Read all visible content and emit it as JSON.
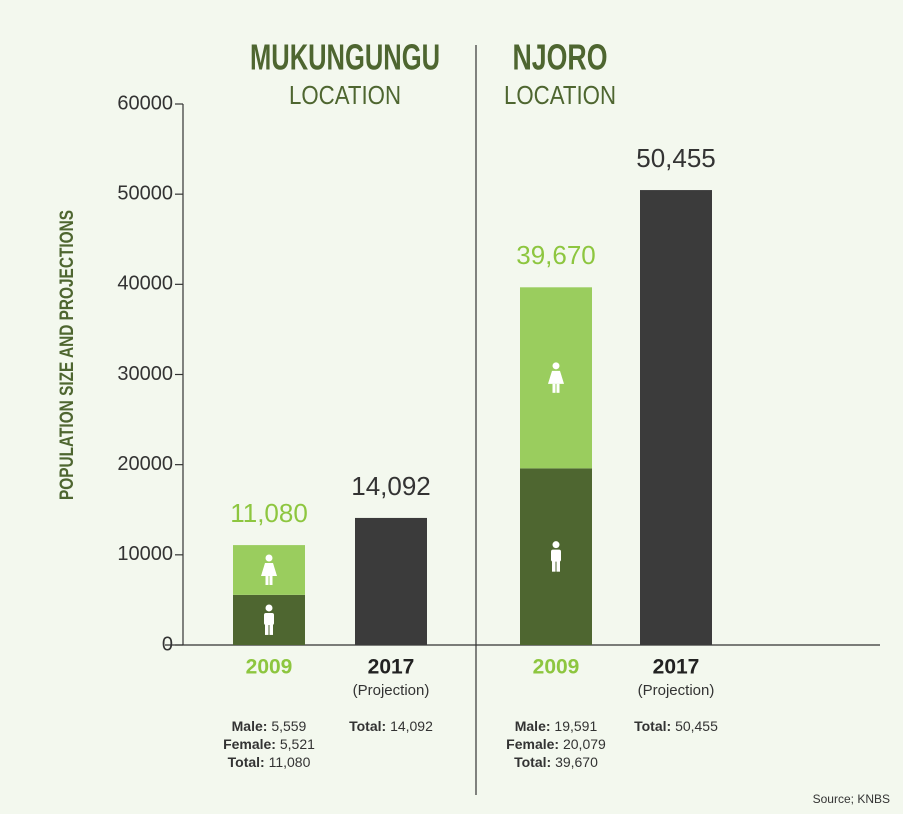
{
  "chart_data": {
    "type": "stacked-bar",
    "ylabel": "POPULATION SIZE AND PROJECTIONS",
    "ylim": [
      0,
      60000
    ],
    "yticks": [
      0,
      10000,
      20000,
      30000,
      40000,
      50000,
      60000
    ],
    "source": "Source; KNBS",
    "groups": [
      {
        "title": "MUKUNGUNGU",
        "subtitle": "LOCATION",
        "bars": [
          {
            "category": "2009",
            "category_color": "#8dc63f",
            "total": 11080,
            "total_label": "11,080",
            "total_name": "Total:",
            "label_color": "#8dc63f",
            "segments": [
              {
                "name": "Male:",
                "value": 5559,
                "value_label": "5,559",
                "color": "#4e6630"
              },
              {
                "name": "Female:",
                "value": 5521,
                "value_label": "5,521",
                "color": "#9acd5e"
              }
            ]
          },
          {
            "category": "2017",
            "category_color": "#222222",
            "note": "(Projection)",
            "label_color": "#333333",
            "segments": [
              {
                "name": "Total:",
                "value": 14092,
                "value_label": "14,092",
                "color": "#3b3b3b"
              }
            ]
          }
        ]
      },
      {
        "title": "NJORO",
        "subtitle": "LOCATION",
        "bars": [
          {
            "category": "2009",
            "category_color": "#8dc63f",
            "total": 39670,
            "total_label": "39,670",
            "total_name": "Total:",
            "label_color": "#8dc63f",
            "segments": [
              {
                "name": "Male:",
                "value": 19591,
                "value_label": "19,591",
                "color": "#4e6630"
              },
              {
                "name": "Female:",
                "value": 20079,
                "value_label": "20,079",
                "color": "#9acd5e"
              }
            ]
          },
          {
            "category": "2017",
            "category_color": "#222222",
            "note": "(Projection)",
            "label_color": "#333333",
            "segments": [
              {
                "name": "Total:",
                "value": 50455,
                "value_label": "50,455",
                "color": "#3b3b3b"
              }
            ]
          }
        ]
      }
    ]
  }
}
